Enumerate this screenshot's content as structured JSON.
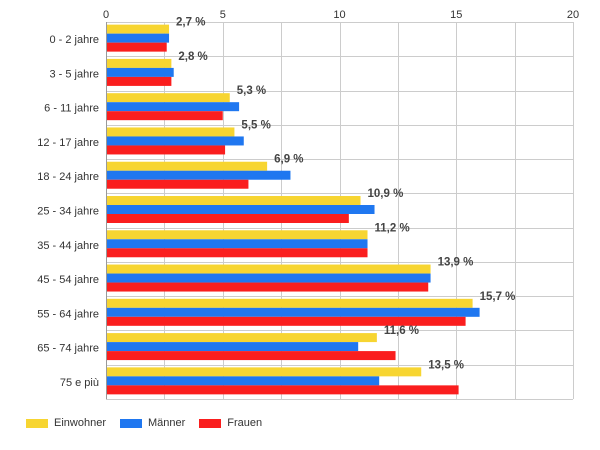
{
  "chart_data": {
    "type": "bar",
    "orientation": "horizontal",
    "categories": [
      "0 - 2 jahre",
      "3 - 5 jahre",
      "6 - 11 jahre",
      "12 - 17 jahre",
      "18 - 24 jahre",
      "25 - 34 jahre",
      "35 - 44 jahre",
      "45 - 54 jahre",
      "55 - 64 jahre",
      "65 - 74 jahre",
      "75 e più"
    ],
    "series": [
      {
        "name": "Einwohner",
        "color": "#f7d531",
        "values": [
          2.7,
          2.8,
          5.3,
          5.5,
          6.9,
          10.9,
          11.2,
          13.9,
          15.7,
          11.6,
          13.5
        ]
      },
      {
        "name": "Männer",
        "color": "#1f77f0",
        "values": [
          2.7,
          2.9,
          5.7,
          5.9,
          7.9,
          11.5,
          11.2,
          13.9,
          16.0,
          10.8,
          11.7
        ]
      },
      {
        "name": "Frauen",
        "color": "#fa1e1e",
        "values": [
          2.6,
          2.8,
          5.0,
          5.1,
          6.1,
          10.4,
          11.2,
          13.8,
          15.4,
          12.4,
          15.1
        ]
      }
    ],
    "data_labels": [
      "2,7 %",
      "2,8 %",
      "5,3 %",
      "5,5 %",
      "6,9 %",
      "10,9 %",
      "11,2 %",
      "13,9 %",
      "15,7 %",
      "11,6 %",
      "13,5 %"
    ],
    "xticks": [
      "0",
      "5",
      "10",
      "15",
      "20"
    ],
    "xlim": [
      0,
      20
    ],
    "grid": true,
    "legend_position": "bottom-left"
  }
}
